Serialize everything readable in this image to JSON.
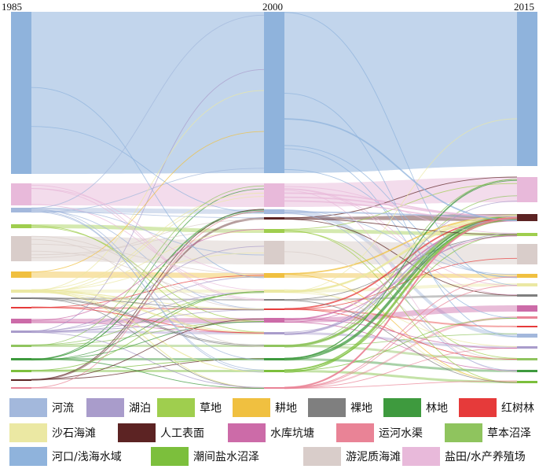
{
  "chart_data": {
    "type": "sankey",
    "years": [
      "1985",
      "2000",
      "2015"
    ],
    "categories": [
      {
        "name": "河流",
        "color": "#a3b8dc"
      },
      {
        "name": "湖泊",
        "color": "#a99ccb"
      },
      {
        "name": "草地",
        "color": "#9fce4e"
      },
      {
        "name": "耕地",
        "color": "#f0c040"
      },
      {
        "name": "裸地",
        "color": "#7f7f7f"
      },
      {
        "name": "林地",
        "color": "#3e9a3e"
      },
      {
        "name": "红树林",
        "color": "#e63a3a"
      },
      {
        "name": "沙石海滩",
        "color": "#ebe8a3"
      },
      {
        "name": "人工表面",
        "color": "#5c2323"
      },
      {
        "name": "水库坑塘",
        "color": "#cc6ba8"
      },
      {
        "name": "运河水渠",
        "color": "#e98396"
      },
      {
        "name": "草本沼泽",
        "color": "#8fc45e"
      },
      {
        "name": "河口/浅海水域",
        "color": "#8fb3dc"
      },
      {
        "name": "潮间盐水沼泽",
        "color": "#7cbf3c"
      },
      {
        "name": "游泥质海滩",
        "color": "#d9cdca"
      },
      {
        "name": "盐田/水产养殖场",
        "color": "#e8b9da"
      }
    ]
  }
}
